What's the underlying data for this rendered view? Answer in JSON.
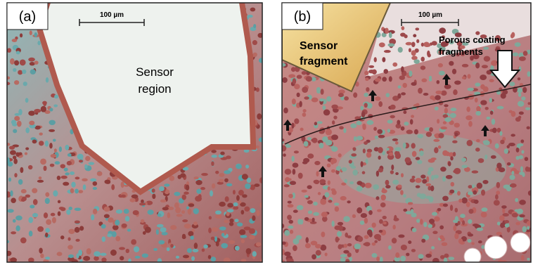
{
  "panels": [
    {
      "label": "(a)",
      "scale_bar": "100 µm",
      "annotation": [
        "Sensor",
        "region"
      ]
    },
    {
      "label": "(b)",
      "scale_bar": "100 µm",
      "annotation": [
        "Sensor",
        "fragment"
      ],
      "annotation_2": [
        "Porous coating",
        "fragments"
      ]
    }
  ]
}
